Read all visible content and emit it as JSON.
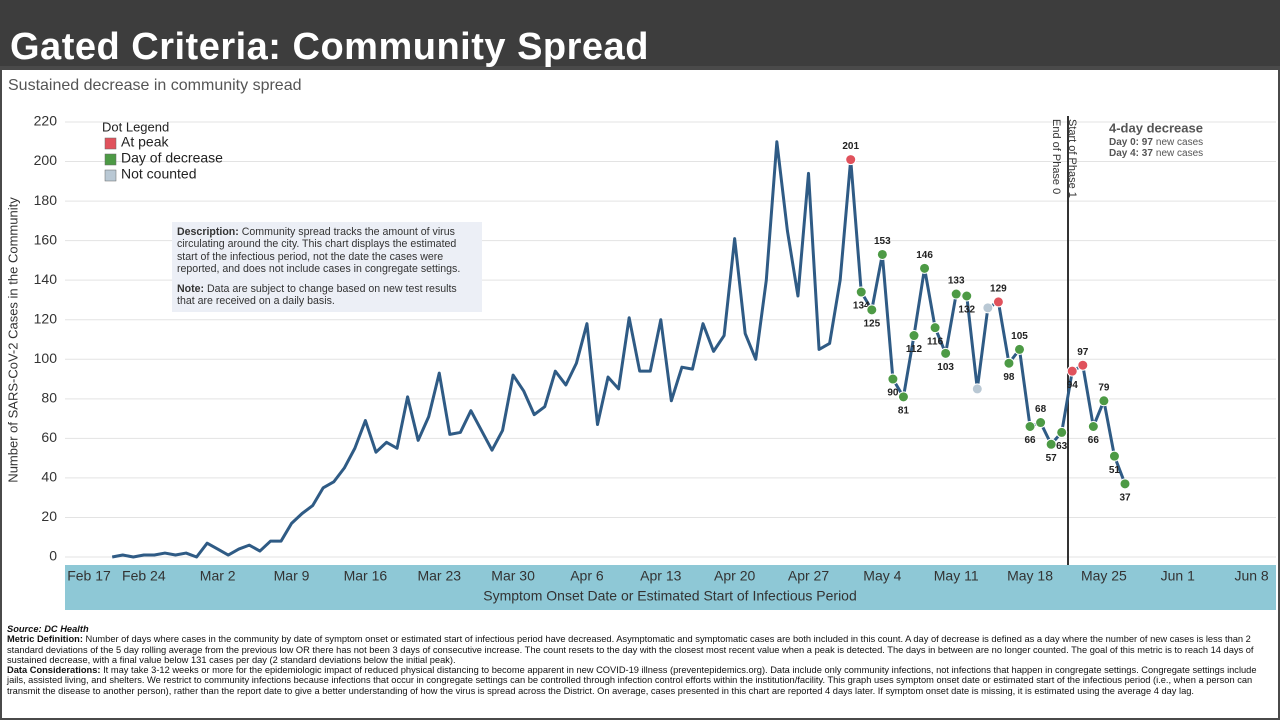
{
  "header": {
    "title": "Gated Criteria: Community Spread"
  },
  "chart_data": {
    "type": "line",
    "title": "Sustained decrease in community spread",
    "y_label": "Number of SARS-CoV-2 Cases in the Community",
    "x_label": "Symptom Onset Date or Estimated Start of Infectious Period",
    "categories": [
      "Feb 17",
      null,
      null,
      null,
      null,
      null,
      null,
      "Feb 24",
      null,
      null,
      null,
      null,
      null,
      null,
      "Mar 2",
      null,
      null,
      null,
      null,
      null,
      null,
      "Mar 9",
      null,
      null,
      null,
      null,
      null,
      null,
      "Mar 16",
      null,
      null,
      null,
      null,
      null,
      null,
      "Mar 23",
      null,
      null,
      null,
      null,
      null,
      null,
      "Mar 30",
      null,
      null,
      null,
      null,
      null,
      null,
      "Apr 6",
      null,
      null,
      null,
      null,
      null,
      null,
      "Apr 13",
      null,
      null,
      null,
      null,
      null,
      null,
      "Apr 20",
      null,
      null,
      null,
      null,
      null,
      null,
      "Apr 27",
      null,
      null,
      null,
      null,
      null,
      null,
      "May 4",
      null,
      null,
      null,
      null,
      null,
      null,
      "May 11",
      null,
      null,
      null,
      null,
      null,
      null,
      "May 18",
      null,
      null,
      null,
      null,
      null,
      null,
      "May 25",
      null,
      null,
      null,
      null,
      null,
      null,
      "Jun 1",
      null,
      null,
      null,
      null,
      null,
      null,
      "Jun 8"
    ],
    "values": [
      null,
      null,
      null,
      null,
      0,
      1,
      0,
      1,
      1,
      2,
      1,
      2,
      0,
      7,
      4,
      1,
      4,
      6,
      3,
      8,
      8,
      17,
      22,
      26,
      35,
      38,
      45,
      55,
      69,
      53,
      58,
      55,
      81,
      59,
      71,
      93,
      62,
      63,
      74,
      64,
      54,
      64,
      92,
      84,
      72,
      76,
      94,
      87,
      98,
      118,
      67,
      91,
      85,
      121,
      94,
      94,
      120,
      79,
      96,
      95,
      118,
      104,
      112,
      161,
      113,
      100,
      140,
      210,
      165,
      132,
      194,
      105,
      108,
      140,
      201,
      134,
      125,
      153,
      90,
      81,
      112,
      146,
      116,
      103,
      133,
      132,
      85,
      126,
      129,
      98,
      105,
      66,
      68,
      57,
      63,
      94,
      97,
      66,
      79,
      51,
      37,
      null,
      null,
      null,
      null,
      null,
      null,
      null,
      null,
      null,
      null,
      null,
      null
    ],
    "color": "#2f5b85",
    "dot_colors": [
      null,
      null,
      null,
      null,
      null,
      null,
      null,
      null,
      null,
      null,
      null,
      null,
      null,
      null,
      null,
      null,
      null,
      null,
      null,
      null,
      null,
      null,
      null,
      null,
      null,
      null,
      null,
      null,
      null,
      null,
      null,
      null,
      null,
      null,
      null,
      null,
      null,
      null,
      null,
      null,
      null,
      null,
      null,
      null,
      null,
      null,
      null,
      null,
      null,
      null,
      null,
      null,
      null,
      null,
      null,
      null,
      null,
      null,
      null,
      null,
      null,
      null,
      null,
      null,
      null,
      null,
      null,
      null,
      null,
      null,
      null,
      null,
      null,
      null,
      "#e0525c",
      "#4d9a45",
      "#4d9a45",
      "#4d9a45",
      "#4d9a45",
      "#4d9a45",
      "#4d9a45",
      "#4d9a45",
      "#4d9a45",
      "#4d9a45",
      "#4d9a45",
      "#4d9a45",
      "#b9c8d4",
      "#b9c8d4",
      "#e0525c",
      "#4d9a45",
      "#4d9a45",
      "#4d9a45",
      "#4d9a45",
      "#4d9a45",
      "#4d9a45",
      "#e0525c",
      "#e0525c",
      "#4d9a45",
      "#4d9a45",
      "#4d9a45",
      "#4d9a45",
      null,
      null,
      null,
      null,
      null,
      null,
      null,
      null,
      null,
      null,
      null,
      null
    ],
    "dot_legend": {
      "title": "Dot Legend",
      "items": [
        {
          "name": "At peak",
          "color": "#e0525c"
        },
        {
          "name": "Day of decrease",
          "color": "#4d9a45"
        },
        {
          "name": "Not counted",
          "color": "#b9c8d4"
        }
      ]
    },
    "ylim": [
      0,
      220
    ],
    "yticks": [
      0,
      20,
      40,
      60,
      80,
      100,
      120,
      140,
      160,
      180,
      200,
      220
    ],
    "grid": true,
    "phase_labels": [
      "End of Phase 0",
      "Start of Phase 1"
    ],
    "decrease_box": {
      "title": "4-day decrease",
      "lines": [
        {
          "label": "Day 0: 97",
          "text": "new cases"
        },
        {
          "label": "Day 4: 37",
          "text": "new cases"
        }
      ]
    },
    "description": {
      "label": "Description:",
      "text": "Community spread tracks the amount of virus circulating around the city. This chart displays the estimated start of the infectious period, not the date the cases were reported, and does not include cases in congregate settings."
    },
    "note": {
      "label": "Note:",
      "text": "Data are subject to change based on new test results that are received on a daily basis."
    }
  },
  "footer": {
    "source": "Source: DC Health",
    "definition": {
      "label": "Metric Definition:",
      "text": "Number of days where cases in the community by date of symptom onset or estimated start of infectious period have decreased. Asymptomatic and symptomatic cases are both included in this count. A day of decrease is defined as a day where the number of new cases is less than 2 standard deviations of the 5 day rolling average from the previous low OR there has not been 3 days of consecutive increase. The count resets to the day with the closest most recent value when a peak is detected. The days in between are no longer counted. The goal of this metric is to reach 14 days of sustained decrease, with a final value below 131 cases per day (2 standard deviations below the initial peak)."
    },
    "considerations": {
      "label": "Data Considerations:",
      "text": "It may take 3-12 weeks or more for the epidemiologic impact of reduced physical distancing to become apparent in new COVID-19 illness (preventepidemics.org). Data include only community infections, not infections that happen in congregate settings. Congregate settings include jails, assisted living, and shelters. We restrict to community infections because infections that occur in congregate settings can be controlled through infection control efforts within the institution/facility. This graph uses symptom onset date or estimated start of the infectious period (i.e., when a person can transmit the disease to another person), rather than the report date to give a better understanding of how the virus is spread across the District. On average, cases presented in this chart are reported 4 days later. If symptom onset date is missing, it is estimated using the average 4 day lag."
    }
  }
}
